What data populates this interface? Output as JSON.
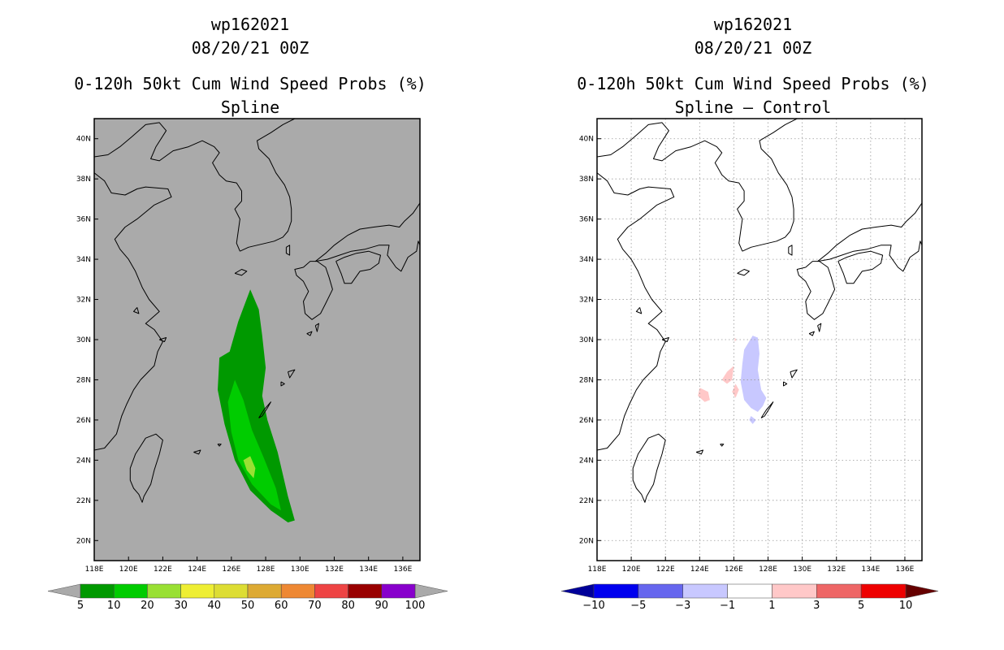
{
  "panels": [
    {
      "storm_id": "wp162021",
      "datetime": "08/20/21 00Z",
      "product": "0-120h 50kt Cum Wind Speed Probs (%)",
      "subtitle": "Spline",
      "background": "#aaaaaa",
      "grid": false
    },
    {
      "storm_id": "wp162021",
      "datetime": "08/20/21 00Z",
      "product": "0-120h 50kt Cum Wind Speed Probs (%)",
      "subtitle": "Spline – Control",
      "background": "#ffffff",
      "grid": true
    }
  ],
  "map": {
    "lon_range": [
      118,
      137
    ],
    "lat_range": [
      19,
      41
    ],
    "lon_ticks": [
      "118E",
      "120E",
      "122E",
      "124E",
      "126E",
      "128E",
      "130E",
      "132E",
      "134E",
      "136E"
    ],
    "lat_ticks": [
      "20N",
      "22N",
      "24N",
      "26N",
      "28N",
      "30N",
      "32N",
      "34N",
      "36N",
      "38N",
      "40N"
    ]
  },
  "prob_contours": [
    {
      "level": "5-10",
      "color": "#009900",
      "points": [
        [
          127.1,
          32.5
        ],
        [
          127.6,
          31.5
        ],
        [
          127.8,
          30.2
        ],
        [
          128.0,
          28.6
        ],
        [
          127.8,
          27.2
        ],
        [
          128.1,
          26.0
        ],
        [
          128.7,
          24.4
        ],
        [
          129.3,
          22.2
        ],
        [
          129.7,
          21.0
        ],
        [
          129.3,
          20.9
        ],
        [
          128.3,
          21.5
        ],
        [
          127.1,
          22.5
        ],
        [
          126.2,
          24.0
        ],
        [
          125.6,
          25.8
        ],
        [
          125.2,
          27.5
        ],
        [
          125.3,
          29.1
        ],
        [
          125.9,
          29.4
        ],
        [
          126.4,
          30.9
        ]
      ]
    },
    {
      "level": "10-20",
      "color": "#00cc00",
      "points": [
        [
          126.2,
          28.0
        ],
        [
          126.7,
          27.0
        ],
        [
          127.2,
          25.5
        ],
        [
          127.9,
          24.1
        ],
        [
          128.6,
          22.6
        ],
        [
          128.9,
          21.5
        ],
        [
          128.3,
          21.8
        ],
        [
          127.2,
          22.8
        ],
        [
          126.4,
          24.0
        ],
        [
          126.0,
          25.4
        ],
        [
          125.8,
          26.9
        ]
      ]
    },
    {
      "level": "20-30",
      "color": "#99e033",
      "points": [
        [
          127.1,
          24.2
        ],
        [
          127.4,
          23.6
        ],
        [
          127.3,
          23.1
        ],
        [
          126.9,
          23.5
        ],
        [
          126.7,
          24.0
        ]
      ]
    }
  ],
  "diff_contours": [
    {
      "sign": "negative",
      "color": "#c8c8ff",
      "points": [
        [
          127.1,
          30.2
        ],
        [
          127.4,
          30.1
        ],
        [
          127.5,
          29.3
        ],
        [
          127.4,
          28.5
        ],
        [
          127.6,
          27.5
        ],
        [
          127.9,
          27.1
        ],
        [
          127.7,
          26.7
        ],
        [
          127.4,
          26.4
        ],
        [
          127.0,
          26.6
        ],
        [
          126.6,
          27.0
        ],
        [
          126.4,
          27.9
        ],
        [
          126.5,
          28.8
        ],
        [
          126.6,
          29.5
        ]
      ]
    },
    {
      "sign": "negative",
      "color": "#c8c8ff",
      "points": [
        [
          127.0,
          26.2
        ],
        [
          127.3,
          26.0
        ],
        [
          127.1,
          25.8
        ],
        [
          126.9,
          26.0
        ]
      ]
    },
    {
      "sign": "positive",
      "color": "#ffc8c8",
      "points": [
        [
          125.6,
          28.4
        ],
        [
          126.0,
          28.7
        ],
        [
          125.9,
          28.0
        ],
        [
          125.6,
          27.8
        ],
        [
          125.3,
          28.0
        ]
      ]
    },
    {
      "sign": "positive",
      "color": "#ffc8c8",
      "points": [
        [
          124.0,
          27.6
        ],
        [
          124.5,
          27.4
        ],
        [
          124.6,
          27.0
        ],
        [
          124.3,
          26.9
        ],
        [
          123.9,
          27.2
        ]
      ]
    },
    {
      "sign": "positive",
      "color": "#ffc8c8",
      "points": [
        [
          126.1,
          27.8
        ],
        [
          126.3,
          27.5
        ],
        [
          126.1,
          27.1
        ],
        [
          125.9,
          27.4
        ]
      ]
    },
    {
      "sign": "positive",
      "color": "#ffc8c8",
      "points": [
        [
          126.05,
          30.1
        ],
        [
          126.15,
          30.0
        ],
        [
          126.05,
          29.9
        ]
      ]
    }
  ],
  "colorbar_left": {
    "under_color": "#aaaaaa",
    "over_color": "#aaaaaa",
    "colors": [
      "#009900",
      "#00cc00",
      "#99e033",
      "#eeee33",
      "#dddd33",
      "#ddaa33",
      "#ee8833",
      "#ee4444",
      "#990000",
      "#8800cc"
    ],
    "labels": [
      "5",
      "10",
      "20",
      "30",
      "40",
      "50",
      "60",
      "70",
      "80",
      "90",
      "100"
    ]
  },
  "colorbar_right": {
    "under_color": "#000099",
    "over_color": "#660000",
    "colors": [
      "#0000ee",
      "#6666ee",
      "#c8c8ff",
      "#ffffff",
      "#ffc8c8",
      "#ee6666",
      "#ee0000"
    ],
    "labels": [
      "−10",
      "−5",
      "−3",
      "−1",
      "1",
      "3",
      "5",
      "10"
    ]
  }
}
